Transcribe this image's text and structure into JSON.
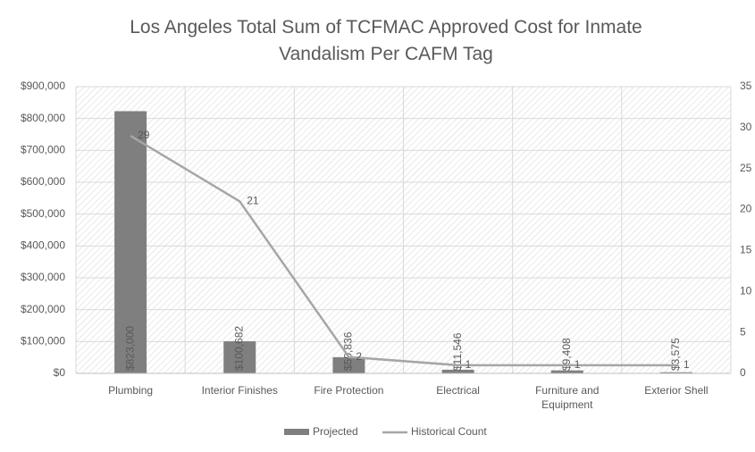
{
  "chart_data": {
    "type": "bar",
    "title": "Los Angeles Total Sum of TCFMAC Approved Cost for Inmate Vandalism Per CAFM Tag",
    "categories": [
      "Plumbing",
      "Interior Finishes",
      "Fire Protection",
      "Electrical",
      "Furniture and Equipment",
      "Exterior Shell"
    ],
    "series": [
      {
        "name": "Projected",
        "color": "#7f7f7f",
        "values": [
          823000,
          100682,
          50836,
          11546,
          9408,
          3575
        ],
        "value_labels": [
          "$823,000",
          "$100,682",
          "$50,836",
          "$11,546",
          "$9,408",
          "$3,575"
        ]
      },
      {
        "name": "Historical Count",
        "type": "line",
        "axis": "y2",
        "color": "#a6a6a6",
        "values": [
          29,
          21,
          2,
          1,
          1,
          1
        ]
      }
    ],
    "ylim": [
      0,
      900000
    ],
    "yticks": [
      {
        "value": 0,
        "label": "$0"
      },
      {
        "value": 100000,
        "label": "$100,000"
      },
      {
        "value": 200000,
        "label": "$200,000"
      },
      {
        "value": 300000,
        "label": "$300,000"
      },
      {
        "value": 400000,
        "label": "$400,000"
      },
      {
        "value": 500000,
        "label": "$500,000"
      },
      {
        "value": 600000,
        "label": "$600,000"
      },
      {
        "value": 700000,
        "label": "$700,000"
      },
      {
        "value": 800000,
        "label": "$800,000"
      },
      {
        "value": 900000,
        "label": "$900,000"
      }
    ],
    "y2lim": [
      0,
      35
    ],
    "y2ticks": [
      0,
      5,
      10,
      15,
      20,
      25,
      30,
      35
    ],
    "grid": true
  }
}
